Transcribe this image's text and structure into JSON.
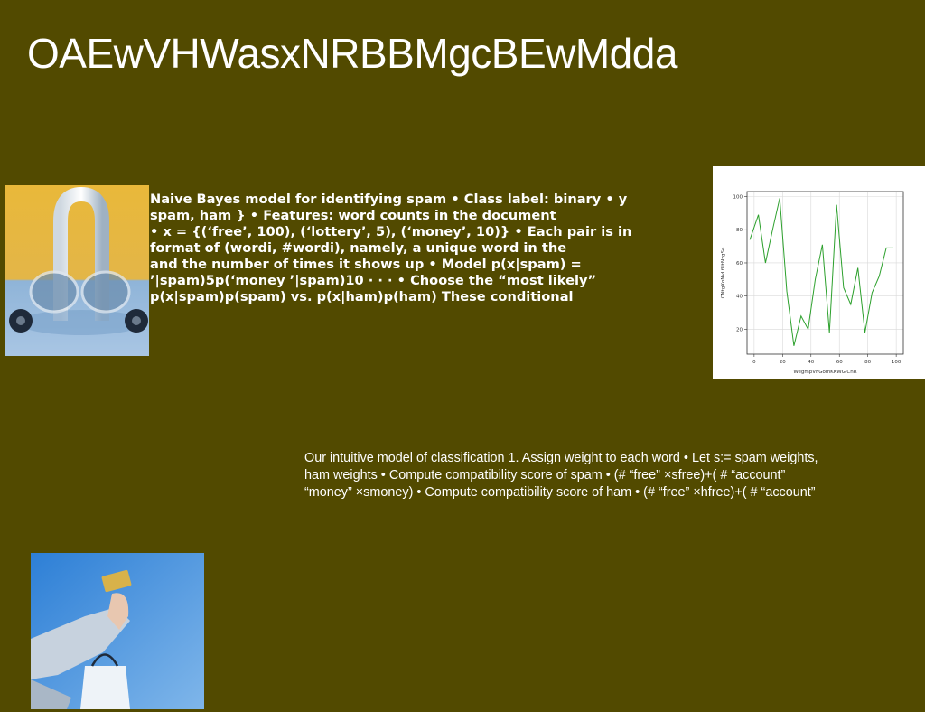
{
  "slide": {
    "title": "OAEwVHWasxNRBBMgcBEwMdda",
    "text_block_1": [
      "Naive Bayes model for identifying spam • Class label: binary • y",
      "spam, ham } • Features: word counts in the document",
      "• x = {(‘free’, 100), (‘lottery’, 5), (‘money’, 10)} • Each pair is in",
      "format of (wordi, #wordi), namely, a unique word in the",
      "and the number of times it shows up • Model p(x|spam) =",
      "’|spam)5p(‘money ’|spam)10 · · · • Choose the “most likely”",
      "p(x|spam)p(spam) vs. p(x|ham)p(ham) These conditional"
    ],
    "text_block_2": [
      "Our intuitive model of classification 1. Assign weight to each word • Let s:= spam weights,",
      "ham weights • Compute compatibility score of spam • (# “free” ×sfree)+( # “account”",
      "“money” ×smoney) • Compute compatibility score of ham • (# “free” ×hfree)+( # “account”"
    ]
  },
  "colors": {
    "background": "#524a00",
    "text": "#ffffff",
    "line": "#2ca02c"
  },
  "images": {
    "car": "paperclip-car-with-glasses-illustration",
    "card": "hand-holding-credit-card-with-shopping-bag"
  },
  "chart_data": {
    "type": "line",
    "xlabel": "WegmpVFGomKKWGiCnR",
    "ylabel": "CNtgXoNvLfUtNzgSe",
    "xlim": [
      -5,
      105
    ],
    "ylim": [
      5,
      103
    ],
    "xticks": [
      0,
      20,
      40,
      60,
      80,
      100
    ],
    "yticks": [
      20,
      40,
      60,
      80,
      100
    ],
    "grid": true,
    "x": [
      -3,
      3,
      8,
      13,
      18,
      23,
      28,
      33,
      38,
      43,
      48,
      53,
      58,
      63,
      68,
      73,
      78,
      83,
      88,
      93,
      98
    ],
    "y": [
      74,
      89,
      60,
      80,
      99,
      43,
      10,
      28,
      20,
      50,
      71,
      18,
      95,
      45,
      35,
      57,
      18,
      42,
      52,
      69,
      69
    ]
  }
}
